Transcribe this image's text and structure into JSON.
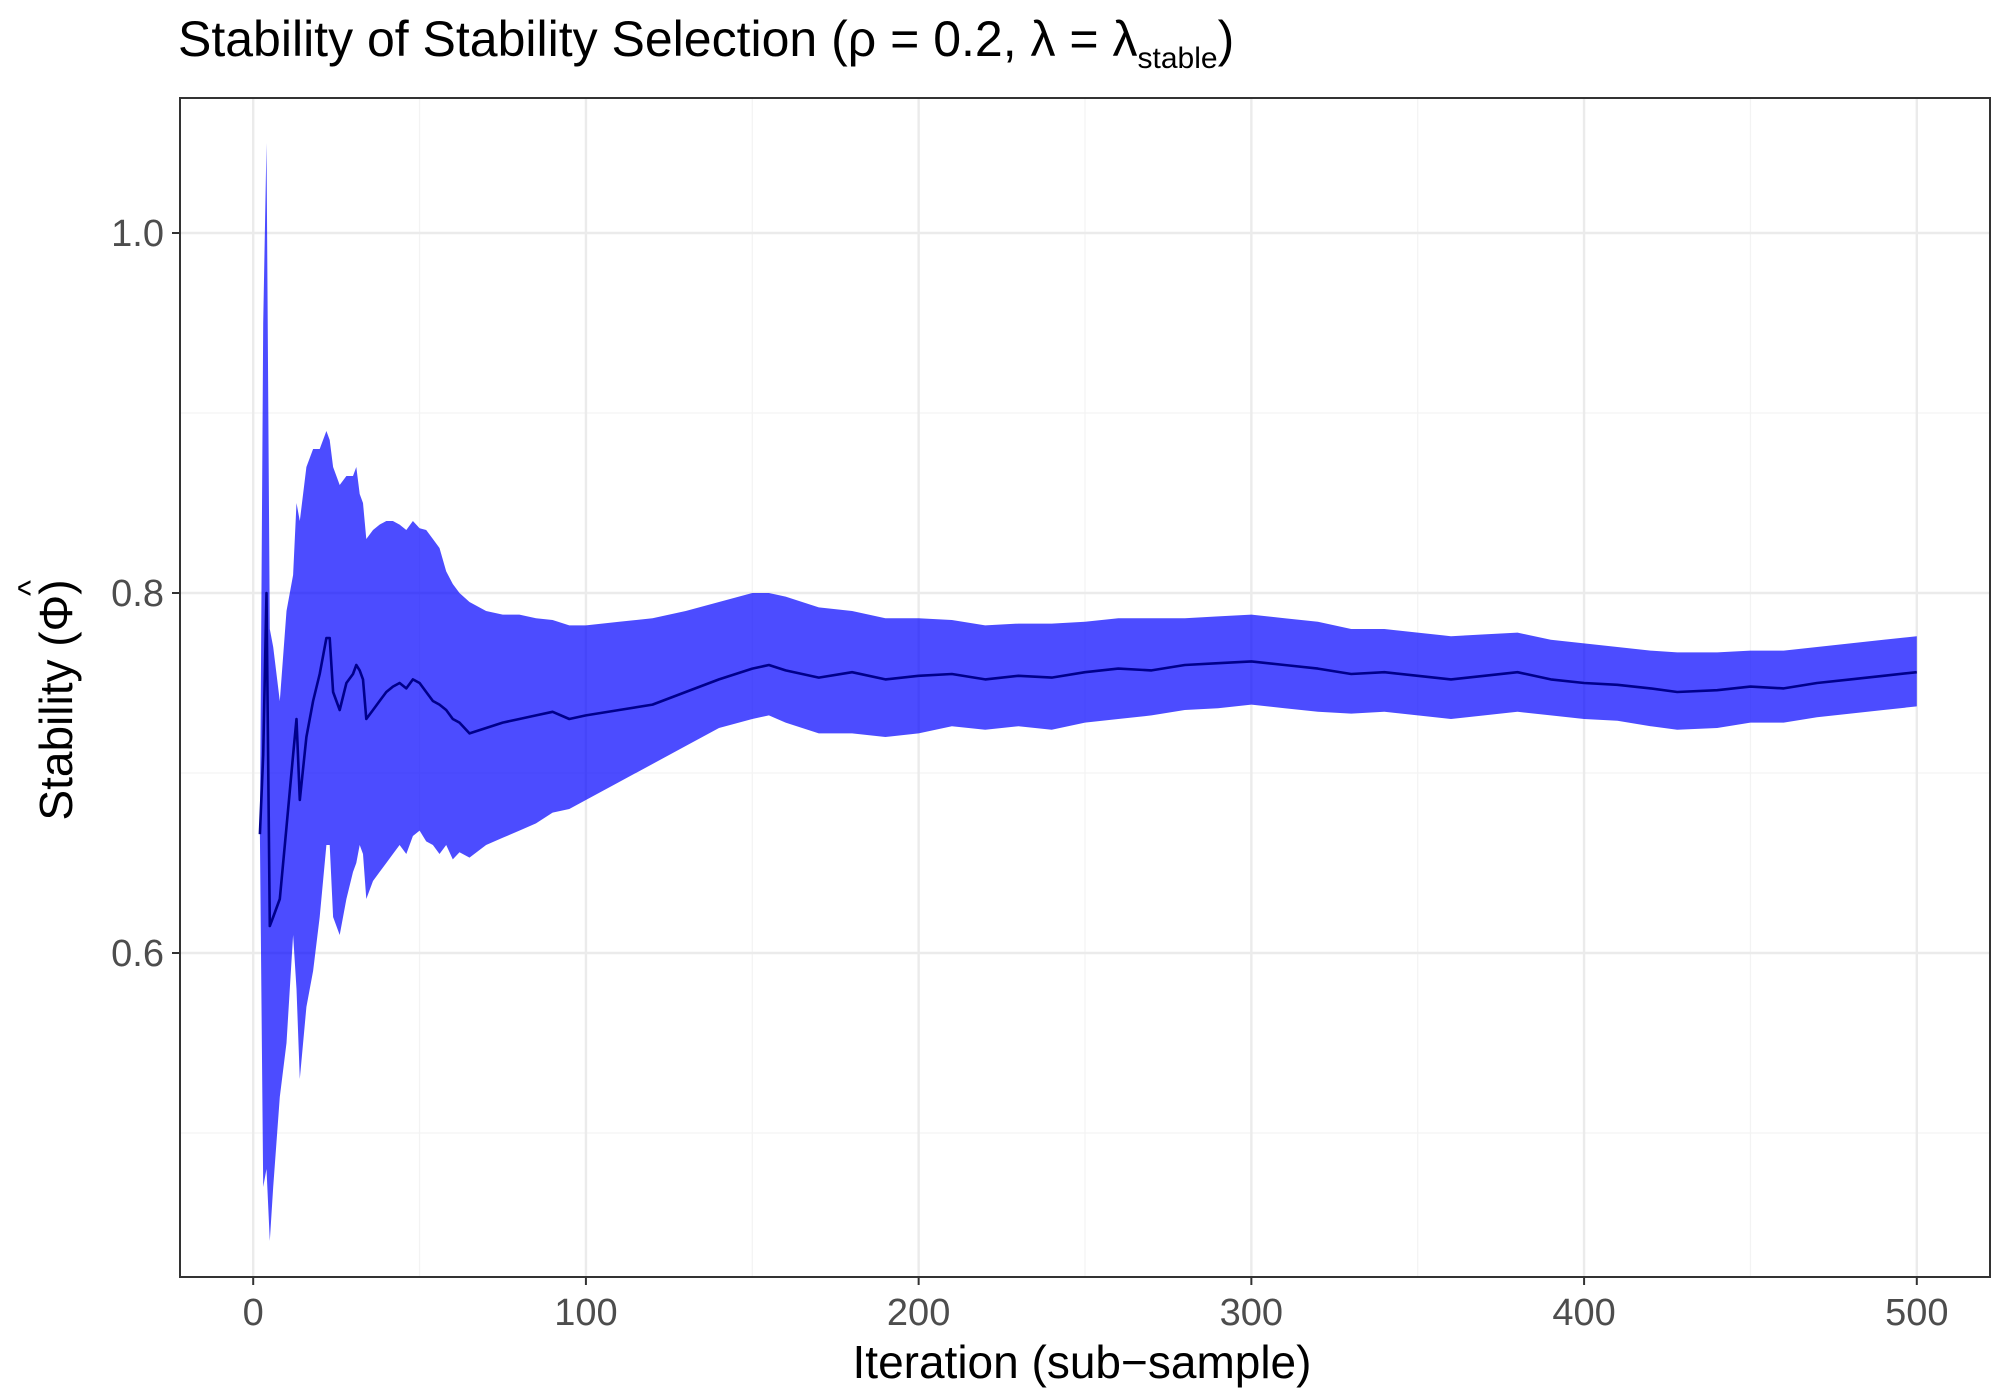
{
  "chart_data": {
    "type": "line",
    "title": {
      "prefix": "Stability of Stability Selection (",
      "rho_symbol": "ρ",
      "eq1": " = ",
      "rho_value": "0.2",
      "sep": ", ",
      "lambda_symbol": "λ",
      "eq2": " = ",
      "lambda_rhs": "λ",
      "lambda_subscript": "stable",
      "suffix": ")"
    },
    "xlabel": "Iteration (sub−sample)",
    "ylabel": {
      "prefix": "Stability (",
      "symbol": "Φ",
      "hat": "^",
      "suffix": ")"
    },
    "xlim": [
      -22,
      522
    ],
    "ylim": [
      0.42,
      1.075
    ],
    "x_ticks": [
      0,
      100,
      200,
      300,
      400,
      500
    ],
    "x_tick_labels": [
      "0",
      "100",
      "200",
      "300",
      "400",
      "500"
    ],
    "y_ticks": [
      0.6,
      0.8,
      1.0
    ],
    "y_tick_labels": [
      "0.6",
      "0.8",
      "1.0"
    ],
    "grid": true,
    "colors": {
      "band": "#0000ff",
      "band_opacity": 0.7,
      "line": "#00008b",
      "grid_major": "#ebebeb",
      "grid_minor": "#f3f3f3",
      "border": "#333333"
    },
    "series": [
      {
        "x": [
          2,
          3,
          4,
          5,
          6,
          8,
          10,
          12,
          13,
          14,
          16,
          18,
          20,
          22,
          23,
          24,
          26,
          28,
          30,
          31,
          32,
          33,
          34,
          36,
          38,
          40,
          42,
          44,
          46,
          48,
          50,
          52,
          54,
          56,
          58,
          60,
          62,
          65,
          70,
          75,
          80,
          85,
          90,
          95,
          100,
          110,
          120,
          130,
          140,
          150,
          155,
          160,
          170,
          180,
          190,
          200,
          210,
          220,
          230,
          240,
          250,
          260,
          270,
          280,
          290,
          300,
          310,
          320,
          330,
          340,
          350,
          360,
          370,
          380,
          390,
          400,
          410,
          420,
          428,
          440,
          450,
          460,
          470,
          480,
          490,
          500
        ],
        "y": [
          0.666,
          0.71,
          0.8,
          0.615,
          0.62,
          0.63,
          0.67,
          0.71,
          0.73,
          0.685,
          0.72,
          0.74,
          0.755,
          0.775,
          0.775,
          0.745,
          0.735,
          0.75,
          0.755,
          0.76,
          0.757,
          0.752,
          0.73,
          0.735,
          0.74,
          0.745,
          0.748,
          0.75,
          0.747,
          0.752,
          0.75,
          0.745,
          0.74,
          0.738,
          0.735,
          0.73,
          0.728,
          0.722,
          0.725,
          0.728,
          0.73,
          0.732,
          0.734,
          0.73,
          0.732,
          0.735,
          0.738,
          0.745,
          0.752,
          0.758,
          0.76,
          0.757,
          0.753,
          0.756,
          0.752,
          0.754,
          0.755,
          0.752,
          0.754,
          0.753,
          0.756,
          0.758,
          0.757,
          0.76,
          0.761,
          0.762,
          0.76,
          0.758,
          0.755,
          0.756,
          0.754,
          0.752,
          0.754,
          0.756,
          0.752,
          0.75,
          0.749,
          0.747,
          0.745,
          0.746,
          0.748,
          0.747,
          0.75,
          0.752,
          0.754,
          0.756
        ],
        "lower": [
          0.666,
          0.47,
          0.48,
          0.44,
          0.47,
          0.52,
          0.55,
          0.61,
          0.58,
          0.53,
          0.57,
          0.59,
          0.62,
          0.66,
          0.66,
          0.62,
          0.61,
          0.63,
          0.645,
          0.65,
          0.66,
          0.655,
          0.63,
          0.64,
          0.645,
          0.65,
          0.655,
          0.66,
          0.655,
          0.665,
          0.668,
          0.662,
          0.66,
          0.655,
          0.66,
          0.652,
          0.656,
          0.653,
          0.66,
          0.664,
          0.668,
          0.672,
          0.678,
          0.68,
          0.685,
          0.695,
          0.705,
          0.715,
          0.725,
          0.73,
          0.732,
          0.728,
          0.722,
          0.722,
          0.72,
          0.722,
          0.726,
          0.724,
          0.726,
          0.724,
          0.728,
          0.73,
          0.732,
          0.735,
          0.736,
          0.738,
          0.736,
          0.734,
          0.733,
          0.734,
          0.732,
          0.73,
          0.732,
          0.734,
          0.732,
          0.73,
          0.729,
          0.726,
          0.724,
          0.725,
          0.728,
          0.728,
          0.731,
          0.733,
          0.735,
          0.737
        ],
        "upper": [
          0.666,
          0.95,
          1.05,
          0.78,
          0.77,
          0.74,
          0.79,
          0.81,
          0.85,
          0.84,
          0.87,
          0.88,
          0.88,
          0.89,
          0.885,
          0.87,
          0.86,
          0.865,
          0.865,
          0.87,
          0.855,
          0.85,
          0.83,
          0.835,
          0.838,
          0.84,
          0.84,
          0.838,
          0.835,
          0.84,
          0.836,
          0.835,
          0.83,
          0.825,
          0.812,
          0.805,
          0.8,
          0.795,
          0.79,
          0.788,
          0.788,
          0.786,
          0.785,
          0.782,
          0.782,
          0.784,
          0.786,
          0.79,
          0.795,
          0.8,
          0.8,
          0.798,
          0.792,
          0.79,
          0.786,
          0.786,
          0.785,
          0.782,
          0.783,
          0.783,
          0.784,
          0.786,
          0.786,
          0.786,
          0.787,
          0.788,
          0.786,
          0.784,
          0.78,
          0.78,
          0.778,
          0.776,
          0.777,
          0.778,
          0.774,
          0.772,
          0.77,
          0.768,
          0.767,
          0.767,
          0.768,
          0.768,
          0.77,
          0.772,
          0.774,
          0.776
        ]
      }
    ]
  }
}
